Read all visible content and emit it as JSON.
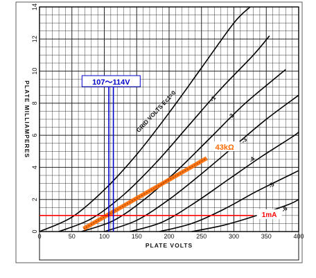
{
  "chart_data": {
    "type": "line",
    "xlabel": "PLATE VOLTS",
    "ylabel": "PLATE MILLIAMPERES",
    "xlim": [
      0,
      400
    ],
    "ylim": [
      0,
      14
    ],
    "x_ticks": [
      "0",
      "50",
      "100",
      "150",
      "200",
      "250",
      "300",
      "350",
      "400"
    ],
    "y_ticks": [
      "0",
      "2",
      "4",
      "6",
      "8",
      "10",
      "12",
      "14"
    ],
    "grid": true,
    "curve_family_label": "GRID VOLTS Ec1=0",
    "series": [
      {
        "name": "0",
        "label": "",
        "x": [
          0,
          50,
          100,
          150,
          200,
          250,
          300,
          325
        ],
        "y": [
          0,
          0.9,
          2.6,
          4.8,
          7.4,
          10.2,
          13.0,
          14.0
        ]
      },
      {
        "name": "-1",
        "label": "-1",
        "x": [
          30,
          80,
          130,
          180,
          230,
          280,
          330,
          355
        ],
        "y": [
          0,
          0.8,
          2.3,
          4.3,
          6.6,
          8.9,
          11.0,
          12.2
        ]
      },
      {
        "name": "-2",
        "label": "-2",
        "x": [
          65,
          115,
          165,
          215,
          265,
          315,
          365,
          380
        ],
        "y": [
          0,
          0.7,
          2.1,
          3.9,
          5.9,
          7.9,
          9.6,
          10.1
        ]
      },
      {
        "name": "-3",
        "label": "-3",
        "x": [
          100,
          150,
          200,
          250,
          300,
          350,
          400
        ],
        "y": [
          0,
          0.7,
          2.0,
          3.6,
          5.3,
          7.0,
          8.5
        ]
      },
      {
        "name": "-4",
        "label": "-4",
        "x": [
          140,
          190,
          240,
          290,
          340,
          390,
          400
        ],
        "y": [
          0,
          0.6,
          1.8,
          3.2,
          4.6,
          5.9,
          6.2
        ]
      },
      {
        "name": "-5",
        "label": "-5",
        "x": [
          185,
          235,
          285,
          335,
          385,
          400
        ],
        "y": [
          0,
          0.5,
          1.4,
          2.5,
          3.5,
          3.8
        ]
      },
      {
        "name": "-6",
        "label": "-6",
        "x": [
          235,
          285,
          335,
          385,
          400
        ],
        "y": [
          0,
          0.4,
          1.0,
          1.7,
          2.0
        ]
      }
    ],
    "annotations": {
      "load_line": {
        "label": "43kΩ",
        "color": "#ff6a00",
        "x": [
          68,
          258
        ],
        "y": [
          0,
          4.4
        ]
      },
      "current_line": {
        "label": "1mA",
        "color": "#ff0000",
        "y": 1.0,
        "x": [
          0,
          330
        ]
      },
      "voltage_range": {
        "label": "107～114V",
        "color": "#0000cc",
        "x": [
          107,
          114
        ],
        "y": [
          0,
          9.2
        ]
      }
    }
  }
}
